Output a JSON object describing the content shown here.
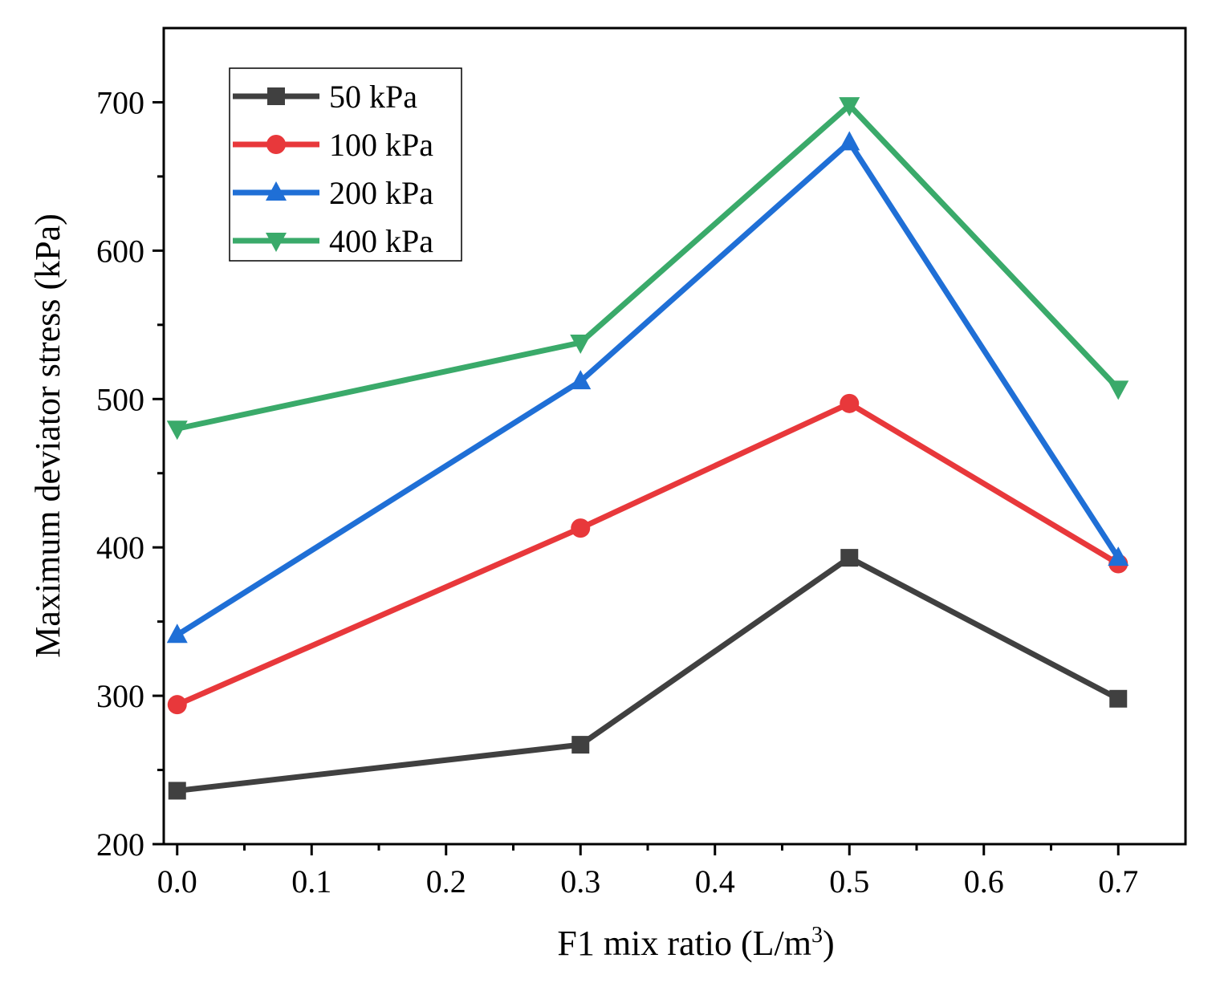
{
  "chart_data": {
    "type": "line",
    "title": "",
    "xlabel": "F1 mix ratio (L/m",
    "xlabel_superscript": "3",
    "xlabel_suffix": ")",
    "ylabel": "Maximum deviator stress (kPa)",
    "xlim": [
      -0.01,
      0.75
    ],
    "ylim": [
      200,
      750
    ],
    "x_ticks": [
      0.0,
      0.1,
      0.2,
      0.3,
      0.4,
      0.5,
      0.6,
      0.7
    ],
    "x_tick_labels": [
      "0.0",
      "0.1",
      "0.2",
      "0.3",
      "0.4",
      "0.5",
      "0.6",
      "0.7"
    ],
    "y_ticks": [
      200,
      300,
      400,
      500,
      600,
      700
    ],
    "y_tick_labels": [
      "200",
      "300",
      "400",
      "500",
      "600",
      "700"
    ],
    "grid": false,
    "legend_position": "top-left",
    "x": [
      0.0,
      0.3,
      0.5,
      0.7
    ],
    "series": [
      {
        "name": "50 kPa",
        "color": "#404040",
        "marker": "square",
        "values": [
          236,
          267,
          393,
          298
        ]
      },
      {
        "name": "100 kPa",
        "color": "#e8383b",
        "marker": "circle",
        "values": [
          294,
          413,
          497,
          389
        ]
      },
      {
        "name": "200 kPa",
        "color": "#1f6fd6",
        "marker": "triangle-up",
        "values": [
          341,
          512,
          673,
          393
        ]
      },
      {
        "name": "400 kPa",
        "color": "#3aaa6a",
        "marker": "triangle-down",
        "values": [
          480,
          538,
          698,
          507
        ]
      }
    ]
  }
}
